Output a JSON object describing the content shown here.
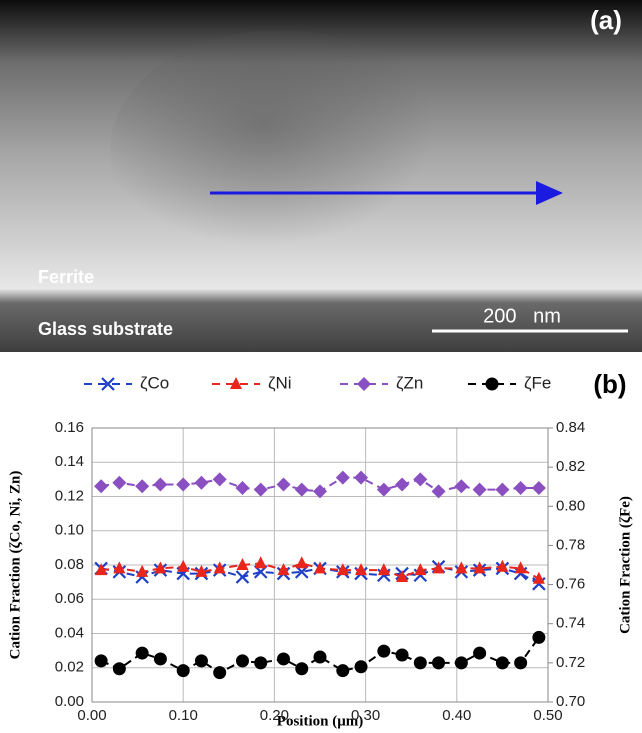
{
  "image": {
    "panel_label": "(a)",
    "layer_top": "Ferrite",
    "layer_bottom": "Glass substrate",
    "scale_bar": "200   nm"
  },
  "chart_data": {
    "type": "line",
    "panel_label": "(b)",
    "x_label": "Position (μm)",
    "y_label": "Cation Fraction (ζCo, Ni, Zn)",
    "y2_label": "Cation Fraction (ζFe)",
    "x": [
      0.01,
      0.03,
      0.055,
      0.075,
      0.1,
      0.12,
      0.14,
      0.165,
      0.185,
      0.21,
      0.23,
      0.25,
      0.275,
      0.295,
      0.32,
      0.34,
      0.36,
      0.38,
      0.405,
      0.425,
      0.45,
      0.47,
      0.49
    ],
    "series": [
      {
        "name": "ζCo",
        "color": "#1f3fc8",
        "marker": "x",
        "values": [
          0.078,
          0.076,
          0.073,
          0.077,
          0.075,
          0.075,
          0.077,
          0.073,
          0.076,
          0.075,
          0.076,
          0.078,
          0.076,
          0.075,
          0.074,
          0.075,
          0.074,
          0.079,
          0.076,
          0.077,
          0.078,
          0.075,
          0.069
        ]
      },
      {
        "name": "ζNi",
        "color": "#e8261c",
        "marker": "triangle",
        "values": [
          0.077,
          0.078,
          0.076,
          0.078,
          0.079,
          0.076,
          0.078,
          0.08,
          0.081,
          0.077,
          0.081,
          0.078,
          0.077,
          0.077,
          0.077,
          0.073,
          0.077,
          0.078,
          0.078,
          0.078,
          0.079,
          0.078,
          0.072
        ]
      },
      {
        "name": "ζZn",
        "color": "#8a4fc0",
        "marker": "diamond",
        "values": [
          0.126,
          0.128,
          0.126,
          0.127,
          0.127,
          0.128,
          0.13,
          0.125,
          0.124,
          0.127,
          0.124,
          0.123,
          0.131,
          0.131,
          0.124,
          0.127,
          0.13,
          0.123,
          0.126,
          0.124,
          0.124,
          0.125,
          0.125
        ]
      },
      {
        "name": "ζFe",
        "color": "#000000",
        "marker": "circle",
        "axis": "y2",
        "values": [
          0.721,
          0.717,
          0.725,
          0.722,
          0.716,
          0.721,
          0.715,
          0.721,
          0.72,
          0.722,
          0.717,
          0.723,
          0.716,
          0.718,
          0.726,
          0.724,
          0.72,
          0.72,
          0.72,
          0.725,
          0.72,
          0.72,
          0.733
        ]
      }
    ],
    "xlim": [
      0,
      0.5
    ],
    "xticks": [
      {
        "value": 0,
        "label": "0.00"
      },
      {
        "value": 0.1,
        "label": "0.10"
      },
      {
        "value": 0.2,
        "label": "0.20"
      },
      {
        "value": 0.3,
        "label": "0.30"
      },
      {
        "value": 0.4,
        "label": "0.40"
      },
      {
        "value": 0.5,
        "label": "0.50"
      }
    ],
    "ylim": [
      0,
      0.16
    ],
    "yticks": [
      {
        "value": 0,
        "label": "0.00"
      },
      {
        "value": 0.02,
        "label": "0.02"
      },
      {
        "value": 0.04,
        "label": "0.04"
      },
      {
        "value": 0.06,
        "label": "0.06"
      },
      {
        "value": 0.08,
        "label": "0.08"
      },
      {
        "value": 0.1,
        "label": "0.10"
      },
      {
        "value": 0.12,
        "label": "0.12"
      },
      {
        "value": 0.14,
        "label": "0.14"
      },
      {
        "value": 0.16,
        "label": "0.16"
      }
    ],
    "y2lim": [
      0.7,
      0.84
    ],
    "y2ticks": [
      {
        "value": 0.7,
        "label": "0.70"
      },
      {
        "value": 0.72,
        "label": "0.72"
      },
      {
        "value": 0.74,
        "label": "0.74"
      },
      {
        "value": 0.76,
        "label": "0.76"
      },
      {
        "value": 0.78,
        "label": "0.78"
      },
      {
        "value": 0.8,
        "label": "0.80"
      },
      {
        "value": 0.82,
        "label": "0.82"
      },
      {
        "value": 0.84,
        "label": "0.84"
      }
    ],
    "grid": true,
    "legend": "top"
  }
}
